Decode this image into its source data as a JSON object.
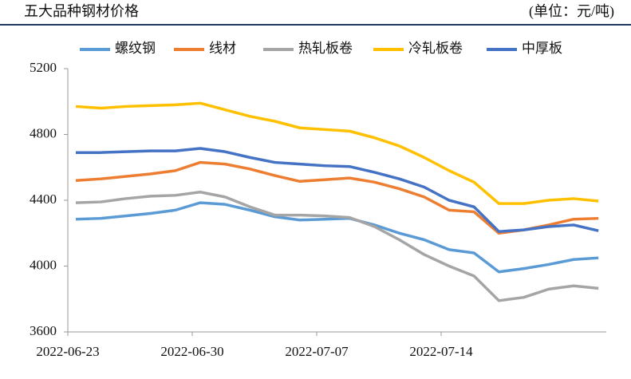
{
  "chart_data": {
    "type": "line",
    "title": "五大品种钢材价格",
    "unit": "(单位：元/吨)",
    "categories": [
      "2022-06-23",
      null,
      null,
      null,
      null,
      "2022-06-30",
      null,
      null,
      null,
      null,
      "2022-07-07",
      null,
      null,
      null,
      null,
      "2022-07-14",
      null,
      null,
      null,
      null,
      null,
      null
    ],
    "series": [
      {
        "name": "螺纹钢",
        "color": "#5b9bd5",
        "values": [
          4285,
          4290,
          4305,
          4320,
          4340,
          4385,
          4375,
          4340,
          4300,
          4280,
          4285,
          4290,
          4250,
          4200,
          4160,
          4100,
          4080,
          3965,
          3985,
          4010,
          4040,
          4050
        ]
      },
      {
        "name": "线材",
        "color": "#ed7d31",
        "values": [
          4520,
          4530,
          4545,
          4560,
          4580,
          4630,
          4620,
          4590,
          4550,
          4515,
          4525,
          4535,
          4510,
          4470,
          4420,
          4340,
          4330,
          4200,
          4220,
          4250,
          4285,
          4290
        ]
      },
      {
        "name": "热轧板卷",
        "color": "#a5a5a5",
        "values": [
          4385,
          4390,
          4410,
          4425,
          4430,
          4450,
          4420,
          4360,
          4310,
          4310,
          4305,
          4295,
          4240,
          4160,
          4070,
          4000,
          3940,
          3790,
          3810,
          3860,
          3880,
          3865
        ]
      },
      {
        "name": "冷轧板卷",
        "color": "#ffc000",
        "values": [
          4970,
          4960,
          4970,
          4975,
          4980,
          4990,
          4950,
          4910,
          4880,
          4840,
          4830,
          4820,
          4780,
          4730,
          4660,
          4580,
          4510,
          4380,
          4380,
          4400,
          4410,
          4395
        ]
      },
      {
        "name": "中厚板",
        "color": "#4472c4",
        "values": [
          4690,
          4690,
          4695,
          4700,
          4700,
          4715,
          4695,
          4660,
          4630,
          4620,
          4610,
          4605,
          4570,
          4530,
          4480,
          4400,
          4360,
          4210,
          4220,
          4240,
          4250,
          4215
        ]
      }
    ],
    "ylim": [
      3600,
      5200
    ],
    "yticks": [
      3600,
      4000,
      4400,
      4800,
      5200
    ]
  }
}
